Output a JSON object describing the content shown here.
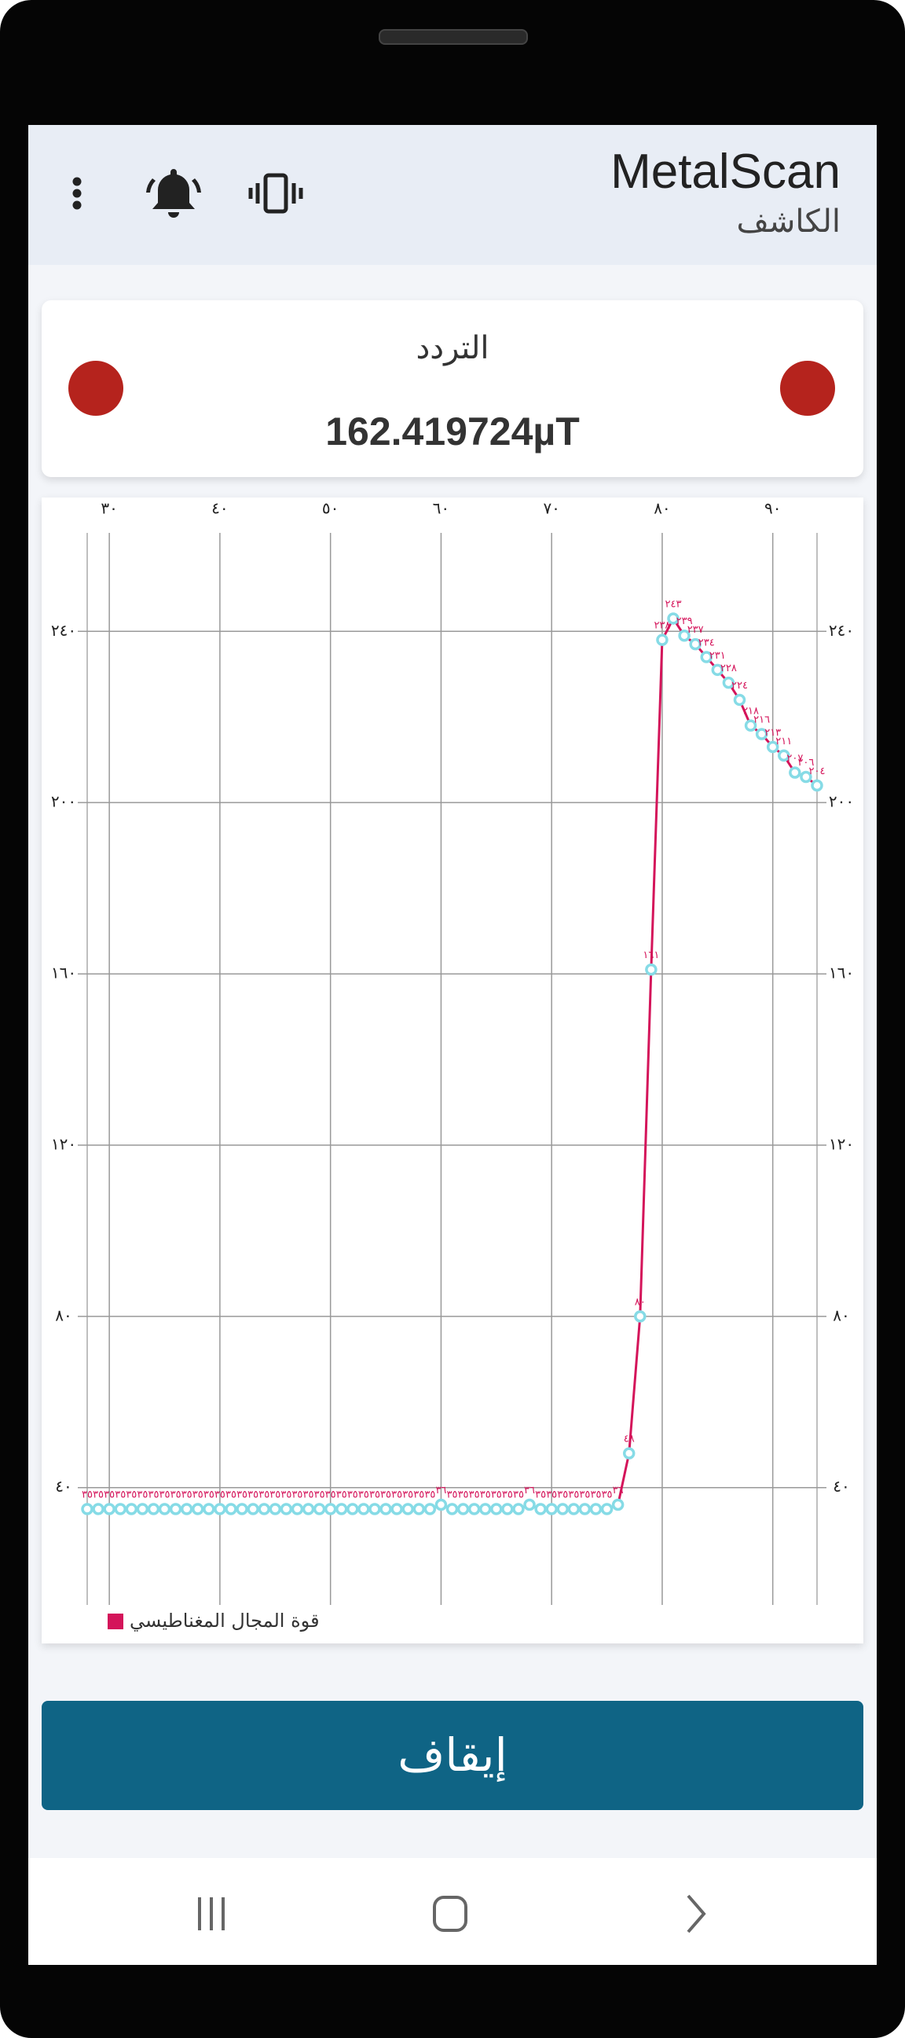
{
  "header": {
    "title": "MetalScan",
    "subtitle": "الكاشف"
  },
  "reading": {
    "label": "التردد",
    "value": "162.419724µT"
  },
  "chart_data": {
    "type": "line",
    "x": [
      28,
      29,
      30,
      31,
      32,
      33,
      34,
      35,
      36,
      37,
      38,
      39,
      40,
      41,
      42,
      43,
      44,
      45,
      46,
      47,
      48,
      49,
      50,
      51,
      52,
      53,
      54,
      55,
      56,
      57,
      58,
      59,
      60,
      61,
      62,
      63,
      64,
      65,
      66,
      67,
      68,
      69,
      70,
      71,
      72,
      73,
      74,
      75,
      76,
      77,
      78,
      79,
      80,
      81,
      82,
      83,
      84,
      85,
      86,
      87,
      88,
      89,
      90,
      91,
      92,
      93,
      94
    ],
    "series": [
      {
        "name": "قوة المجال المغناطيسي",
        "color": "#d4145a",
        "marker_color": "#86dbe6",
        "values": [
          35,
          35,
          35,
          35,
          35,
          35,
          35,
          35,
          35,
          35,
          35,
          35,
          35,
          35,
          35,
          35,
          35,
          35,
          35,
          35,
          35,
          35,
          35,
          35,
          35,
          35,
          35,
          35,
          35,
          35,
          35,
          35,
          36,
          35,
          35,
          35,
          35,
          35,
          35,
          35,
          36,
          35,
          35,
          35,
          35,
          35,
          35,
          35,
          36,
          48,
          80,
          161,
          238,
          243,
          239,
          237,
          234,
          231,
          228,
          224,
          218,
          216,
          213,
          211,
          207,
          206,
          204
        ],
        "value_labels": [
          "٣٥",
          "٣٥",
          "٣٥",
          "٣٥",
          "٣٥",
          "٣٥",
          "٣٥",
          "٣٥",
          "٣٥",
          "٣٥",
          "٣٥",
          "٣٥",
          "٣٥",
          "٣٥",
          "٣٥",
          "٣٥",
          "٣٥",
          "٣٥",
          "٣٥",
          "٣٥",
          "٣٥",
          "٣٥",
          "٣٥",
          "٣٥",
          "٣٥",
          "٣٥",
          "٣٥",
          "٣٥",
          "٣٥",
          "٣٥",
          "٣٥",
          "٣٥",
          "٣٦",
          "٣٥",
          "٣٥",
          "٣٥",
          "٣٥",
          "٣٥",
          "٣٥",
          "٣٥",
          "٣٦",
          "٣٥",
          "٣٥",
          "٣٥",
          "٣٥",
          "٣٥",
          "٣٥",
          "٣٥",
          "٣٦",
          "٤٨",
          "٨٠",
          "١٦١",
          "٢٣٨",
          "٢٤٣",
          "٢٣٩",
          "٢٣٧",
          "٢٣٤",
          "٢٣١",
          "٢٢٨",
          "٢٢٤",
          "٢١٨",
          "٢١٦",
          "٢١٣",
          "٢١١",
          "٢٠٧",
          "٢٠٦",
          "٢٠٤"
        ]
      }
    ],
    "xlim": [
      28,
      94
    ],
    "xticks": [
      {
        "value": 30,
        "label": "٣٠"
      },
      {
        "value": 40,
        "label": "٤٠"
      },
      {
        "value": 50,
        "label": "٥٠"
      },
      {
        "value": 60,
        "label": "٦٠"
      },
      {
        "value": 70,
        "label": "٧٠"
      },
      {
        "value": 80,
        "label": "٨٠"
      },
      {
        "value": 90,
        "label": "٩٠"
      }
    ],
    "ylim": [
      12.6,
      263
    ],
    "yticks": [
      {
        "value": 40,
        "label": "٤٠"
      },
      {
        "value": 80,
        "label": "٨٠"
      },
      {
        "value": 120,
        "label": "١٢٠"
      },
      {
        "value": 160,
        "label": "١٦٠"
      },
      {
        "value": 200,
        "label": "٢٠٠"
      },
      {
        "value": 240,
        "label": "٢٤٠"
      }
    ],
    "grid": true,
    "legend": "bottom-left"
  },
  "button": {
    "label": "إيقاف"
  }
}
